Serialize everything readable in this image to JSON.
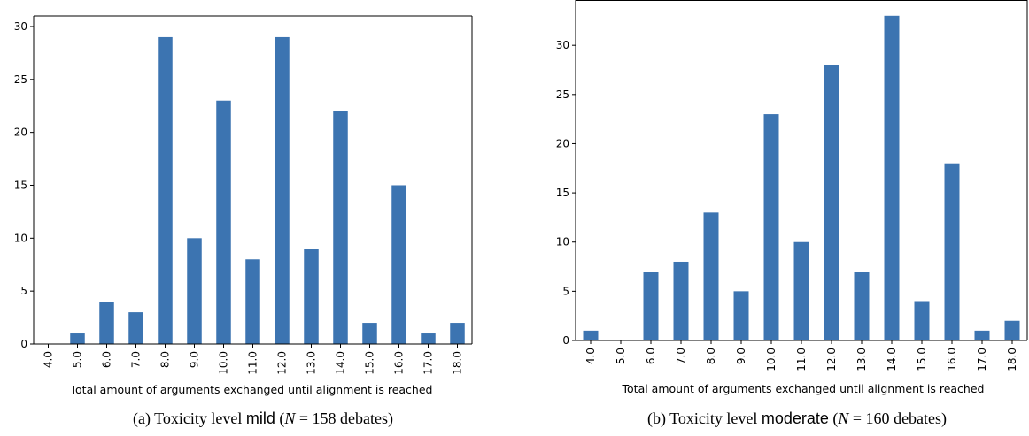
{
  "chart_data": [
    {
      "type": "bar",
      "categories": [
        "4.0",
        "5.0",
        "6.0",
        "7.0",
        "8.0",
        "9.0",
        "10.0",
        "11.0",
        "12.0",
        "13.0",
        "14.0",
        "15.0",
        "16.0",
        "17.0",
        "18.0"
      ],
      "values": [
        0,
        1,
        4,
        3,
        29,
        10,
        23,
        8,
        29,
        9,
        22,
        2,
        15,
        1,
        2
      ],
      "xlabel": "Total amount of arguments exchanged until alignment is reached",
      "ylabel": "",
      "ylim": [
        0,
        31
      ],
      "yticks": [
        "0",
        "5",
        "10",
        "15",
        "20",
        "25",
        "30"
      ],
      "bar_color": "#3c74b1",
      "caption": {
        "prefix": "(a) Toxicity level ",
        "level": "mild",
        "open": " (",
        "n_var": "N",
        "n_eq": " = 158",
        "suffix": " debates)"
      }
    },
    {
      "type": "bar",
      "categories": [
        "4.0",
        "5.0",
        "6.0",
        "7.0",
        "8.0",
        "9.0",
        "10.0",
        "11.0",
        "12.0",
        "13.0",
        "14.0",
        "15.0",
        "16.0",
        "17.0",
        "18.0"
      ],
      "values": [
        1,
        0,
        7,
        8,
        13,
        5,
        23,
        10,
        28,
        7,
        33,
        4,
        18,
        1,
        2
      ],
      "xlabel": "Total amount of arguments exchanged until alignment is reached",
      "ylabel": "",
      "ylim": [
        0,
        34.6
      ],
      "yticks": [
        "0",
        "5",
        "10",
        "15",
        "20",
        "25",
        "30"
      ],
      "bar_color": "#3c74b1",
      "caption": {
        "prefix": "(b) Toxicity level ",
        "level": "moderate",
        "open": " (",
        "n_var": "N",
        "n_eq": " = 160",
        "suffix": " debates)"
      }
    }
  ]
}
